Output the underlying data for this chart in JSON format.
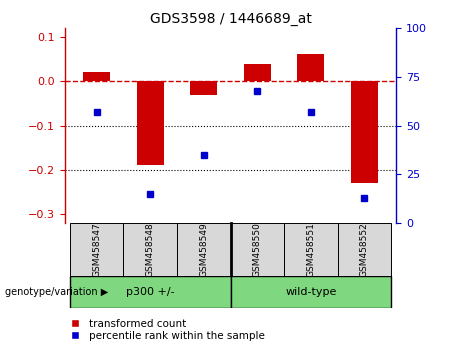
{
  "title": "GDS3598 / 1446689_at",
  "samples": [
    "GSM458547",
    "GSM458548",
    "GSM458549",
    "GSM458550",
    "GSM458551",
    "GSM458552"
  ],
  "red_values": [
    0.022,
    -0.19,
    -0.03,
    0.04,
    0.062,
    -0.23
  ],
  "blue_values": [
    57,
    15,
    35,
    68,
    57,
    13
  ],
  "red_color": "#CC0000",
  "blue_color": "#0000CC",
  "red_ylim": [
    -0.32,
    0.12
  ],
  "blue_ylim": [
    0,
    100
  ],
  "red_yticks": [
    0.1,
    0.0,
    -0.1,
    -0.2,
    -0.3
  ],
  "blue_yticks": [
    100,
    75,
    50,
    25,
    0
  ],
  "hline_y": 0,
  "dotted_lines": [
    -0.1,
    -0.2
  ],
  "bar_width": 0.5,
  "legend_red": "transformed count",
  "legend_blue": "percentile rank within the sample",
  "group_label": "genotype/variation",
  "group1_label": "p300 +/-",
  "group2_label": "wild-type",
  "group_split": 2.5,
  "sample_bg": "#d8d8d8",
  "group_green": "#7FD87F",
  "fig_bg": "white"
}
